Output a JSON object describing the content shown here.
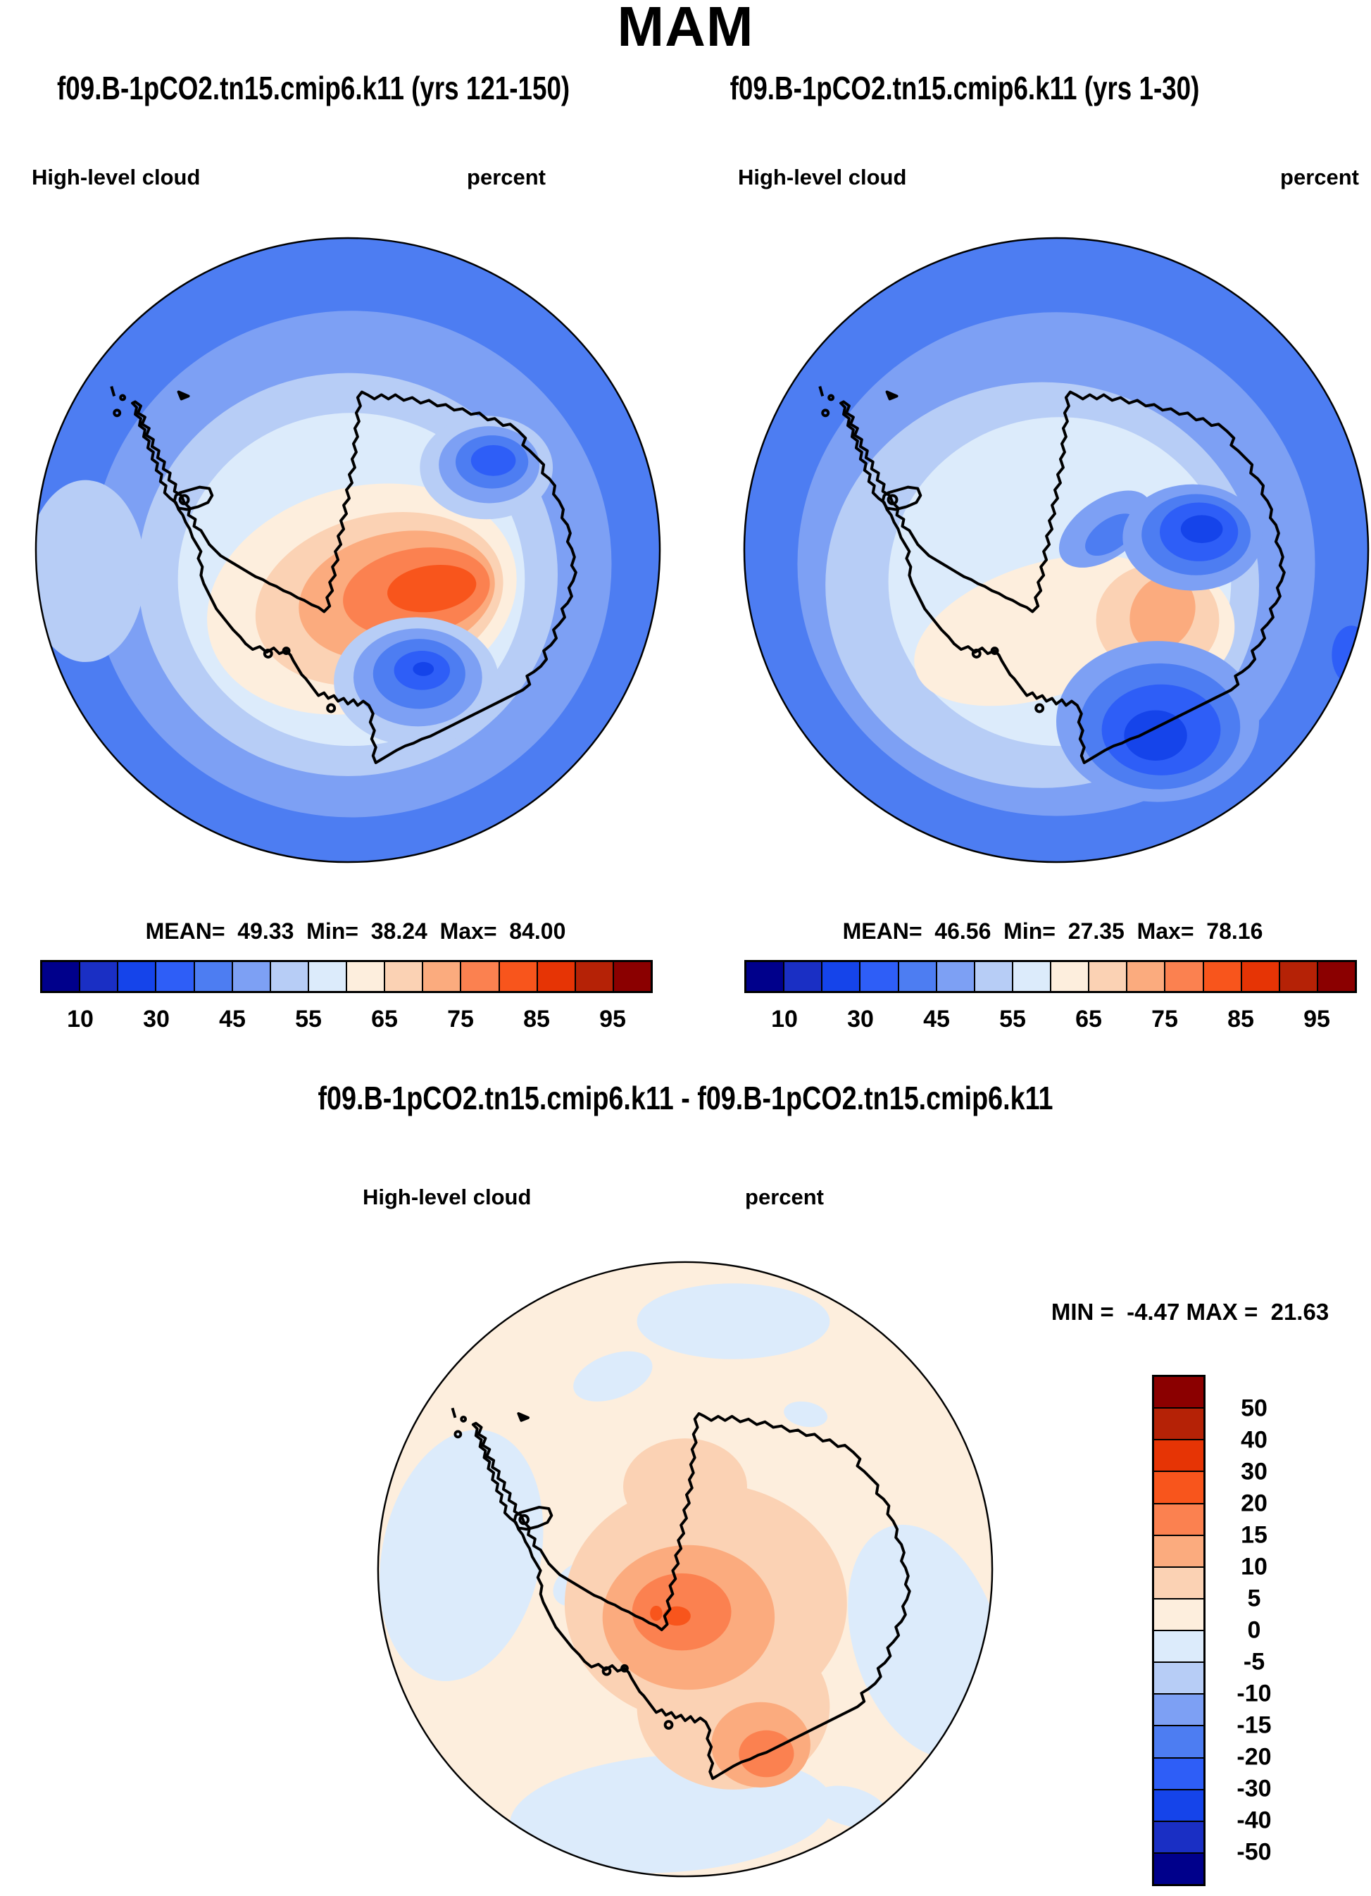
{
  "page": {
    "title": "MAM"
  },
  "palette": {
    "c1": "#00008b",
    "c2": "#1a2fc4",
    "c3": "#1544ea",
    "c4": "#2e5ef7",
    "c5": "#4d7df2",
    "c6": "#7da0f4",
    "c7": "#b7cdf6",
    "c8": "#dcebfb",
    "c9": "#fdeedd",
    "c10": "#fbd2b4",
    "c11": "#fbab7e",
    "c12": "#fb8150",
    "c13": "#f8551c",
    "c14": "#e63405",
    "c15": "#b52206",
    "c16": "#8b0000"
  },
  "panels": {
    "left": {
      "subtitle": "f09.B-1pCO2.tn15.cmip6.k11 (yrs 121-150)",
      "field": "High-level cloud",
      "units": "percent",
      "stats": "MEAN=  49.33  Min=  38.24  Max=  84.00"
    },
    "right": {
      "subtitle": "f09.B-1pCO2.tn15.cmip6.k11 (yrs 1-30)",
      "field": "High-level cloud",
      "units": "percent",
      "stats": "MEAN=  46.56  Min=  27.35  Max=  78.16"
    },
    "diff": {
      "title": "f09.B-1pCO2.tn15.cmip6.k11 - f09.B-1pCO2.tn15.cmip6.k11",
      "field": "High-level cloud",
      "units": "percent",
      "minmax": "MIN =  -4.47 MAX =  21.63"
    }
  },
  "colorbar": {
    "labels": [
      "10",
      "30",
      "45",
      "55",
      "65",
      "75",
      "85",
      "95"
    ],
    "colors": [
      "c1",
      "c2",
      "c3",
      "c4",
      "c5",
      "c6",
      "c7",
      "c8",
      "c9",
      "c10",
      "c11",
      "c12",
      "c13",
      "c14",
      "c15",
      "c16"
    ]
  },
  "diff_colorbar": {
    "labels": [
      "50",
      "40",
      "30",
      "20",
      "15",
      "10",
      "5",
      "0",
      "-5",
      "-10",
      "-15",
      "-20",
      "-30",
      "-40",
      "-50"
    ],
    "colors": [
      "c16",
      "c15",
      "c14",
      "c13",
      "c12",
      "c11",
      "c10",
      "c9",
      "c8",
      "c7",
      "c6",
      "c5",
      "c4",
      "c3",
      "c2",
      "c1"
    ]
  },
  "chart_data": {
    "type": "heatmap",
    "subtype": "south-polar-stereographic-filled-contour-maps",
    "season": "MAM",
    "variable": "High-level cloud",
    "units": "percent",
    "panels": [
      {
        "name": "case1",
        "title": "f09.B-1pCO2.tn15.cmip6.k11 (yrs 121-150)",
        "stats": {
          "mean": 49.33,
          "min": 38.24,
          "max": 84.0
        },
        "contour_levels": [
          10,
          20,
          30,
          40,
          45,
          50,
          55,
          60,
          65,
          70,
          75,
          80,
          85,
          90,
          95
        ],
        "labeled_levels": [
          10,
          30,
          45,
          55,
          65,
          75,
          85,
          95
        ],
        "legend_position": "below"
      },
      {
        "name": "case2",
        "title": "f09.B-1pCO2.tn15.cmip6.k11 (yrs 1-30)",
        "stats": {
          "mean": 46.56,
          "min": 27.35,
          "max": 78.16
        },
        "contour_levels": [
          10,
          20,
          30,
          40,
          45,
          50,
          55,
          60,
          65,
          70,
          75,
          80,
          85,
          90,
          95
        ],
        "labeled_levels": [
          10,
          30,
          45,
          55,
          65,
          75,
          85,
          95
        ],
        "legend_position": "below"
      },
      {
        "name": "difference",
        "title": "f09.B-1pCO2.tn15.cmip6.k11 - f09.B-1pCO2.tn15.cmip6.k11",
        "stats": {
          "min": -4.47,
          "max": 21.63
        },
        "contour_levels": [
          -50,
          -40,
          -30,
          -20,
          -15,
          -10,
          -5,
          0,
          5,
          10,
          15,
          20,
          30,
          40,
          50
        ],
        "legend_position": "right"
      }
    ],
    "colormap_hex": [
      "#00008b",
      "#1a2fc4",
      "#1544ea",
      "#2e5ef7",
      "#4d7df2",
      "#7da0f4",
      "#b7cdf6",
      "#dcebfb",
      "#fdeedd",
      "#fbd2b4",
      "#fbab7e",
      "#fb8150",
      "#f8551c",
      "#e63405",
      "#b52206",
      "#8b0000"
    ]
  }
}
